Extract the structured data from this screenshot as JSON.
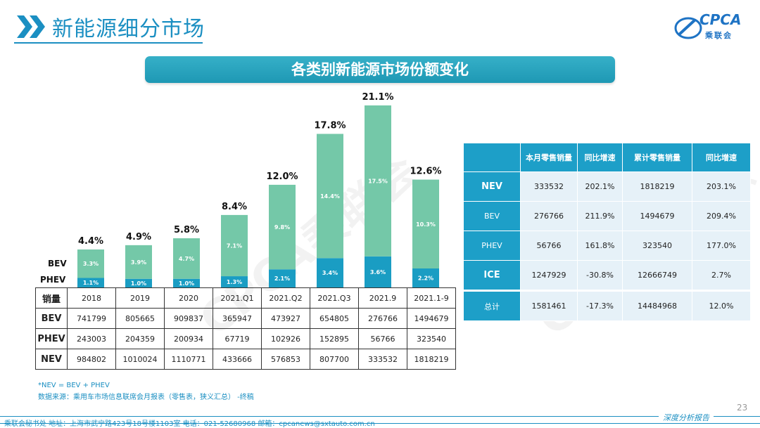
{
  "header": {
    "title": "新能源细分市场",
    "logo_text": "CPCA",
    "logo_sub": "乘联会"
  },
  "banner": {
    "title": "各类别新能源市场份额变化"
  },
  "watermark": {
    "text": "CPCA乘联会"
  },
  "chart_data": {
    "type": "bar",
    "stacked": true,
    "categories": [
      "2018",
      "2019",
      "2020",
      "2021.Q1",
      "2021.Q2",
      "2021.Q3",
      "2021.9",
      "2021.1-9"
    ],
    "series": [
      {
        "name": "PHEV",
        "values": [
          1.1,
          1.0,
          1.0,
          1.3,
          2.1,
          3.4,
          3.6,
          2.2
        ],
        "labels": [
          "1.1%",
          "1.0%",
          "1.0%",
          "1.3%",
          "2.1%",
          "3.4%",
          "3.6%",
          "2.2%"
        ],
        "color": "#1a9dc3"
      },
      {
        "name": "BEV",
        "values": [
          3.3,
          3.9,
          4.7,
          7.1,
          9.8,
          14.4,
          17.5,
          10.3
        ],
        "labels": [
          "3.3%",
          "3.9%",
          "4.7%",
          "7.1%",
          "9.8%",
          "14.4%",
          "17.5%",
          "10.3%"
        ],
        "color": "#74c8a8"
      }
    ],
    "totals": [
      4.4,
      4.9,
      5.8,
      8.4,
      12.0,
      17.8,
      21.1,
      12.6
    ],
    "total_labels": [
      "4.4%",
      "4.9%",
      "5.8%",
      "8.4%",
      "12.0%",
      "17.8%",
      "21.1%",
      "12.6%"
    ],
    "ylim": [
      0,
      21.1
    ],
    "legend_labels": [
      "BEV",
      "PHEV"
    ]
  },
  "sales_table": {
    "corner": "销量",
    "columns": [
      "2018",
      "2019",
      "2020",
      "2021.Q1",
      "2021.Q2",
      "2021.Q3",
      "2021.9",
      "2021.1-9"
    ],
    "rows": [
      {
        "label": "BEV",
        "values": [
          "741799",
          "805665",
          "909837",
          "365947",
          "473927",
          "654805",
          "276766",
          "1494679"
        ]
      },
      {
        "label": "PHEV",
        "values": [
          "243003",
          "204359",
          "200934",
          "67719",
          "102926",
          "152895",
          "56766",
          "323540"
        ]
      },
      {
        "label": "NEV",
        "values": [
          "984802",
          "1010024",
          "1110771",
          "433666",
          "576853",
          "807700",
          "333532",
          "1818219"
        ]
      }
    ]
  },
  "market_table": {
    "headers": [
      "",
      "本月零售销量",
      "同比增速",
      "累计零售销量",
      "同比增速"
    ],
    "rows": [
      {
        "label": "NEV",
        "values": [
          "333532",
          "202.1%",
          "1818219",
          "203.1%"
        ]
      },
      {
        "label": "BEV",
        "values": [
          "276766",
          "211.9%",
          "1494679",
          "209.4%"
        ]
      },
      {
        "label": "PHEV",
        "values": [
          "56766",
          "161.8%",
          "323540",
          "177.0%"
        ]
      },
      {
        "label": "ICE",
        "values": [
          "1247929",
          "-30.8%",
          "12666749",
          "2.7%"
        ]
      }
    ],
    "total": {
      "label": "总计",
      "values": [
        "1581461",
        "-17.3%",
        "14484968",
        "12.0%"
      ]
    }
  },
  "footnotes": {
    "formula": "*NEV = BEV + PHEV",
    "source": "数据来源：乘用车市场信息联席会月报表（零售表，狭义汇总）  -终稿"
  },
  "footer": {
    "contact": "乘联会秘书处   地址：上海市武宁路423号18号楼1103室   电话：021-52680968   邮箱：cpcanews@sxtauto.com.cn",
    "tagline": "深度分析报告",
    "page_number": "23"
  }
}
